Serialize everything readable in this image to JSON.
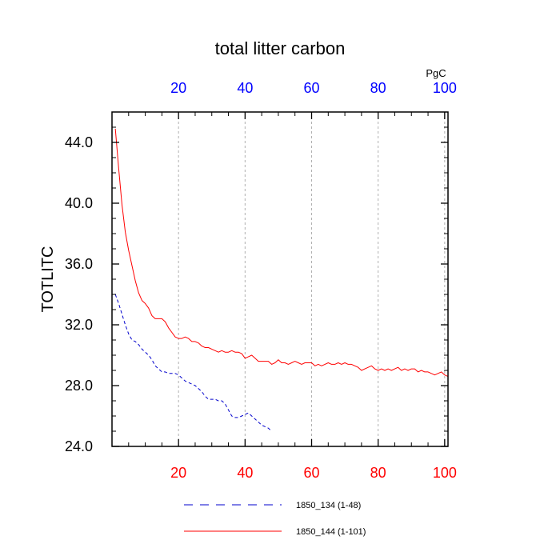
{
  "chart_data": {
    "type": "line",
    "title": "total litter carbon",
    "ylabel": "TOTLITC",
    "xlabel": "",
    "top_axis_unit": "PgC",
    "xlim": [
      0,
      101
    ],
    "ylim": [
      24.0,
      46.0
    ],
    "x_ticks": [
      20,
      40,
      60,
      80,
      100
    ],
    "y_ticks": [
      24.0,
      28.0,
      32.0,
      36.0,
      40.0,
      44.0
    ],
    "y_tick_labels": [
      "24.0",
      "28.0",
      "32.0",
      "36.0",
      "40.0",
      "44.0"
    ],
    "grid": "vertical dashed at x ticks",
    "legend_position": "bottom",
    "colors": {
      "bottom_ticks": "#ff0000",
      "top_ticks": "#0000ff"
    },
    "series": [
      {
        "name": "1850_134 (1-48)",
        "color": "#0000cc",
        "dash": "dashed",
        "x": [
          1,
          2,
          3,
          4,
          5,
          6,
          7,
          8,
          9,
          10,
          11,
          12,
          13,
          14,
          15,
          16,
          17,
          18,
          19,
          20,
          21,
          22,
          23,
          24,
          25,
          26,
          27,
          28,
          29,
          30,
          31,
          32,
          33,
          34,
          35,
          36,
          37,
          38,
          39,
          40,
          41,
          42,
          43,
          44,
          45,
          46,
          47,
          48
        ],
        "values": [
          34.0,
          33.4,
          32.7,
          32.0,
          31.4,
          31.0,
          30.9,
          30.7,
          30.4,
          30.2,
          30.0,
          29.7,
          29.3,
          29.1,
          28.9,
          28.9,
          28.8,
          28.8,
          28.8,
          28.7,
          28.5,
          28.3,
          28.2,
          28.1,
          28.0,
          27.8,
          27.6,
          27.3,
          27.1,
          27.1,
          27.1,
          27.0,
          27.0,
          26.8,
          26.4,
          26.0,
          25.9,
          25.9,
          26.0,
          26.1,
          26.2,
          26.0,
          25.8,
          25.6,
          25.4,
          25.3,
          25.2,
          25.0
        ]
      },
      {
        "name": "1850_144 (1-101)",
        "color": "#ff0000",
        "dash": "solid",
        "x": [
          1,
          2,
          3,
          4,
          5,
          6,
          7,
          8,
          9,
          10,
          11,
          12,
          13,
          14,
          15,
          16,
          17,
          18,
          19,
          20,
          21,
          22,
          23,
          24,
          25,
          26,
          27,
          28,
          29,
          30,
          31,
          32,
          33,
          34,
          35,
          36,
          37,
          38,
          39,
          40,
          41,
          42,
          43,
          44,
          45,
          46,
          47,
          48,
          49,
          50,
          51,
          52,
          53,
          54,
          55,
          56,
          57,
          58,
          59,
          60,
          61,
          62,
          63,
          64,
          65,
          66,
          67,
          68,
          69,
          70,
          71,
          72,
          73,
          74,
          75,
          76,
          77,
          78,
          79,
          80,
          81,
          82,
          83,
          84,
          85,
          86,
          87,
          88,
          89,
          90,
          91,
          92,
          93,
          94,
          95,
          96,
          97,
          98,
          99,
          100,
          101
        ],
        "values": [
          44.9,
          42.3,
          39.9,
          38.1,
          36.9,
          35.9,
          34.9,
          34.1,
          33.6,
          33.4,
          33.1,
          32.6,
          32.4,
          32.4,
          32.4,
          32.2,
          31.8,
          31.5,
          31.2,
          31.1,
          31.1,
          31.2,
          31.1,
          30.9,
          30.9,
          30.8,
          30.6,
          30.5,
          30.5,
          30.4,
          30.3,
          30.2,
          30.3,
          30.2,
          30.2,
          30.3,
          30.2,
          30.2,
          30.1,
          29.8,
          29.9,
          30.0,
          29.8,
          29.6,
          29.6,
          29.6,
          29.6,
          29.4,
          29.5,
          29.7,
          29.5,
          29.5,
          29.4,
          29.5,
          29.6,
          29.5,
          29.4,
          29.5,
          29.5,
          29.5,
          29.3,
          29.4,
          29.3,
          29.4,
          29.5,
          29.4,
          29.4,
          29.5,
          29.4,
          29.5,
          29.4,
          29.4,
          29.3,
          29.2,
          29.0,
          29.1,
          29.2,
          29.3,
          29.1,
          29.0,
          29.1,
          29.0,
          29.1,
          29.0,
          29.1,
          29.2,
          29.0,
          29.1,
          29.0,
          29.1,
          29.1,
          28.9,
          29.0,
          28.9,
          28.9,
          28.8,
          28.7,
          28.8,
          28.9,
          28.7,
          28.6
        ]
      }
    ]
  }
}
